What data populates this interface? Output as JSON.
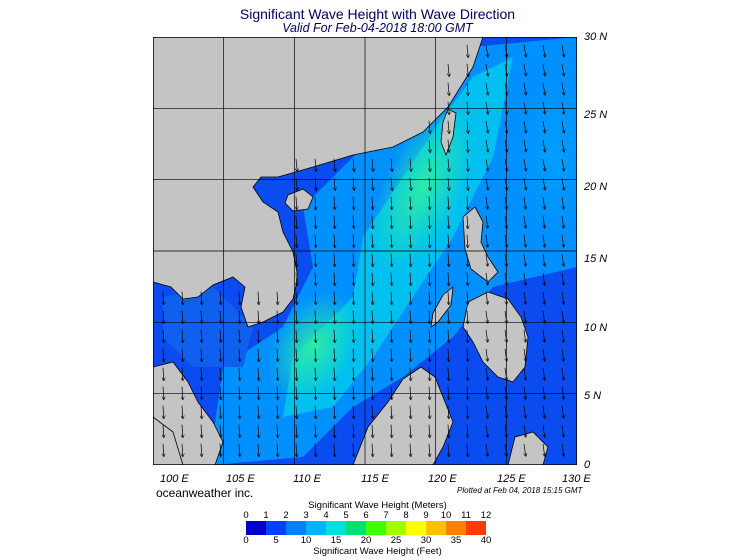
{
  "header": {
    "title": "Significant Wave Height with Wave Direction",
    "subtitle": "Valid For Feb-04-2018 18:00 GMT"
  },
  "map": {
    "lon_range": [
      100,
      130
    ],
    "lat_range": [
      0,
      30
    ],
    "lat_labels": [
      "30 N",
      "25 N",
      "20 N",
      "15 N",
      "10 N",
      "5 N",
      "0"
    ],
    "lon_labels": [
      "100 E",
      "105 E",
      "110 E",
      "115 E",
      "120 E",
      "125 E",
      "130 E"
    ],
    "land_color": "#c4c4c4",
    "grid": true
  },
  "footer": {
    "credit": "oceanweather inc.",
    "plotted": "Plotted at Feb 04, 2018 15:15 GMT"
  },
  "colorbar": {
    "title_meters": "Significant Wave Height (Meters)",
    "title_feet": "Significant Wave Height (Feet)",
    "meter_ticks": [
      "0",
      "1",
      "2",
      "3",
      "4",
      "5",
      "6",
      "7",
      "8",
      "9",
      "10",
      "11",
      "12"
    ],
    "feet_ticks": [
      "0",
      "5",
      "10",
      "15",
      "20",
      "25",
      "30",
      "35",
      "40"
    ],
    "colors": [
      "#0000c8",
      "#0040ff",
      "#0080ff",
      "#00b4ff",
      "#00e0e0",
      "#00e070",
      "#40ff00",
      "#a0ff00",
      "#ffff00",
      "#ffc000",
      "#ff8000",
      "#ff3c00"
    ]
  }
}
